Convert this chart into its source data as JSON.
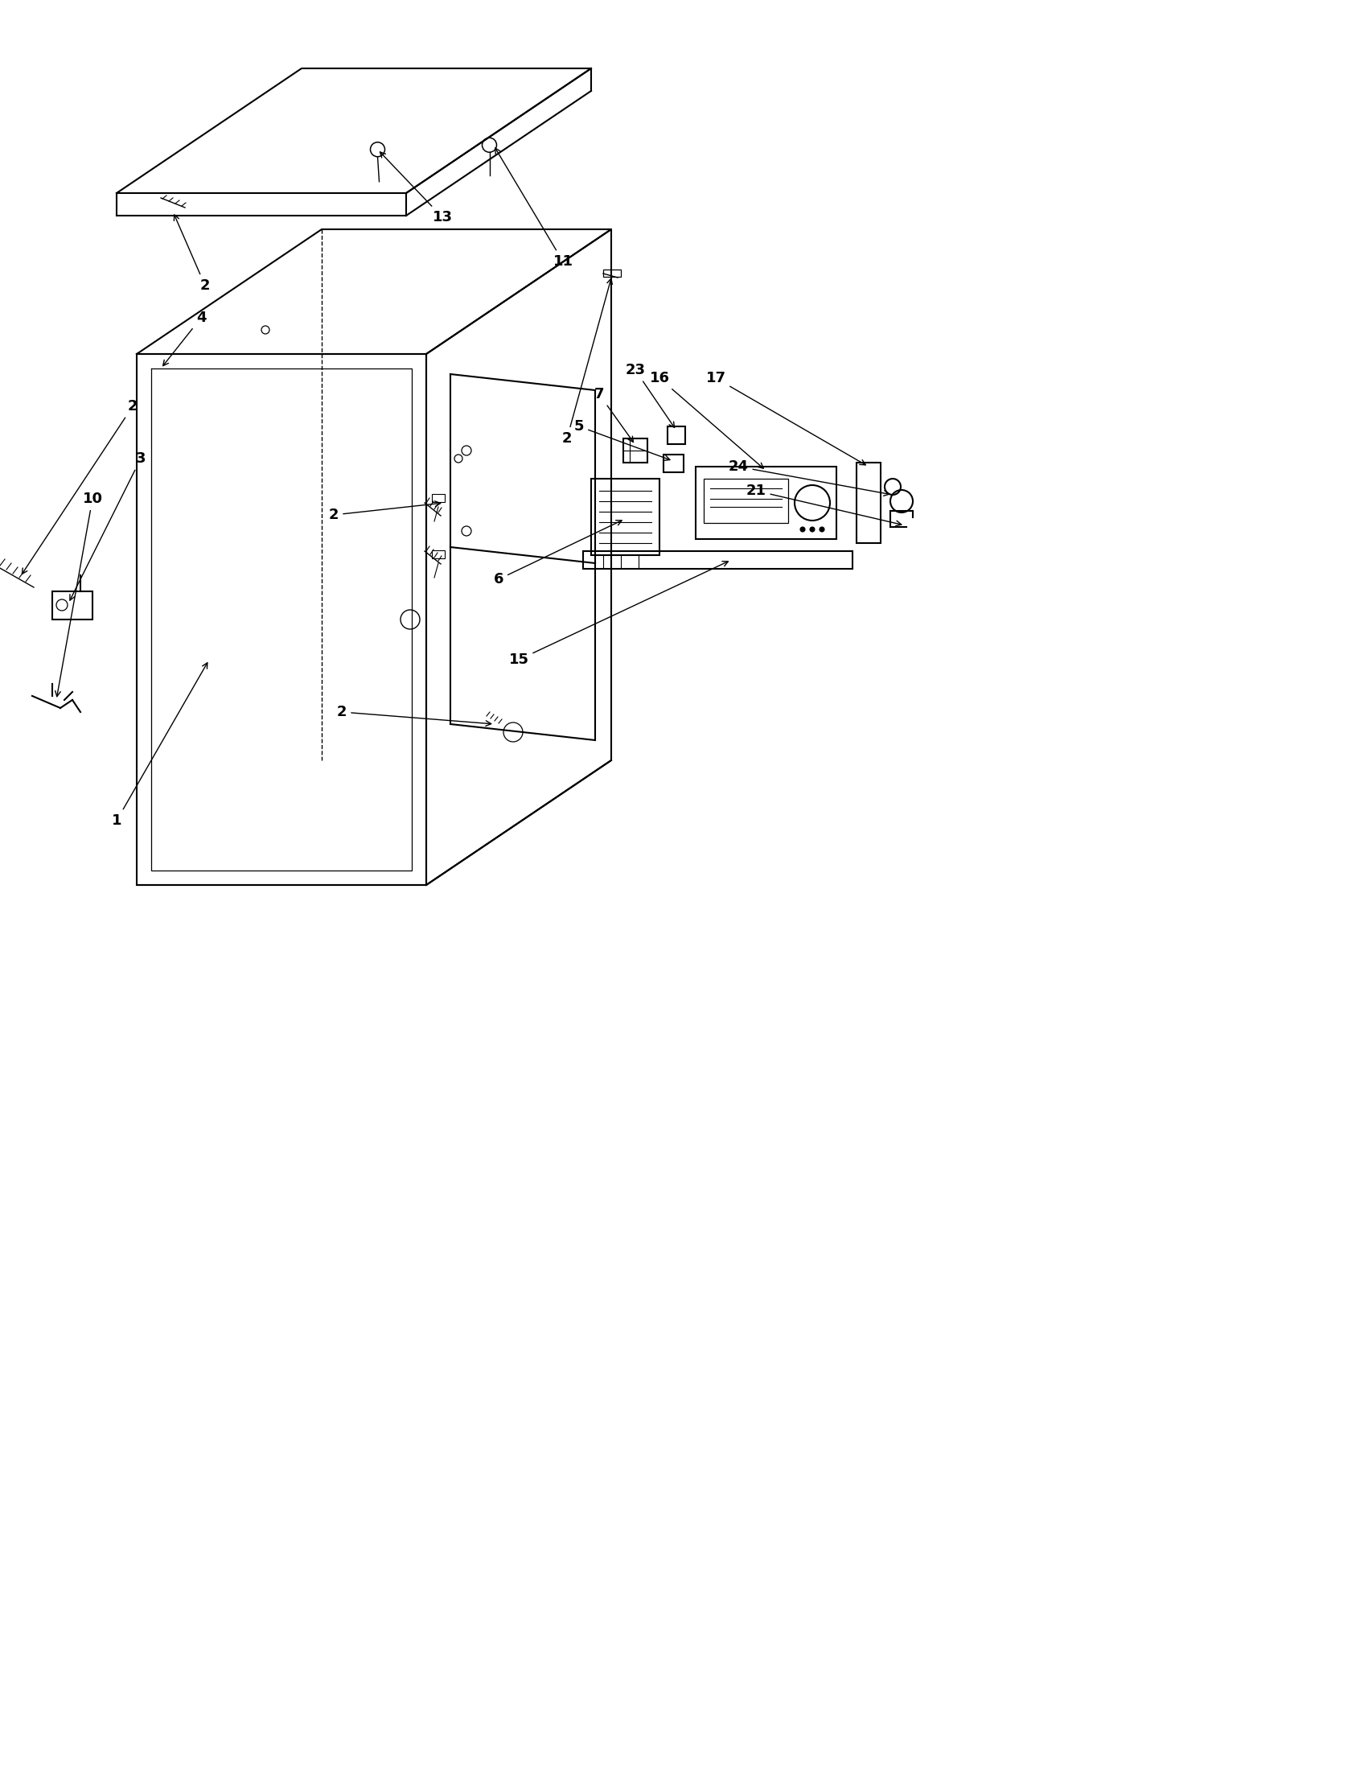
{
  "background_color": "#ffffff",
  "line_color": "#000000",
  "figure_width": 16.96,
  "figure_height": 22.0,
  "label_fontsize": 13
}
